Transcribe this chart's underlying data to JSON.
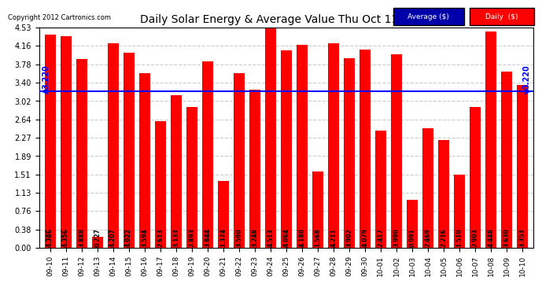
{
  "title": "Daily Solar Energy & Average Value Thu Oct 11 07:09",
  "copyright": "Copyright 2012 Cartronics.com",
  "categories": [
    "09-10",
    "09-11",
    "09-12",
    "09-13",
    "09-14",
    "09-15",
    "09-16",
    "09-17",
    "09-18",
    "09-19",
    "09-20",
    "09-21",
    "09-22",
    "09-23",
    "09-24",
    "09-25",
    "09-26",
    "09-27",
    "09-28",
    "09-29",
    "09-30",
    "10-01",
    "10-02",
    "10-03",
    "10-04",
    "10-05",
    "10-06",
    "10-07",
    "10-08",
    "10-09",
    "10-10"
  ],
  "values": [
    4.386,
    4.356,
    3.888,
    0.227,
    4.207,
    4.022,
    3.594,
    2.613,
    3.133,
    2.893,
    3.844,
    1.374,
    3.59,
    3.248,
    4.513,
    4.064,
    4.18,
    1.568,
    4.211,
    3.902,
    4.079,
    2.417,
    3.99,
    0.991,
    2.469,
    2.216,
    1.51,
    2.903,
    4.448,
    3.63,
    3.353
  ],
  "average": 3.22,
  "bar_color": "#ff0000",
  "average_line_color": "#0000ff",
  "background_color": "#ffffff",
  "plot_bg_color": "#ffffff",
  "grid_color": "#cccccc",
  "ylim": [
    0,
    4.53
  ],
  "yticks": [
    0.0,
    0.38,
    0.76,
    1.13,
    1.51,
    1.89,
    2.27,
    2.64,
    3.02,
    3.4,
    3.78,
    4.16,
    4.53
  ],
  "legend_avg_color": "#0000aa",
  "legend_daily_color": "#ff0000",
  "avg_label": "Average ($)",
  "daily_label": "Daily  ($)"
}
